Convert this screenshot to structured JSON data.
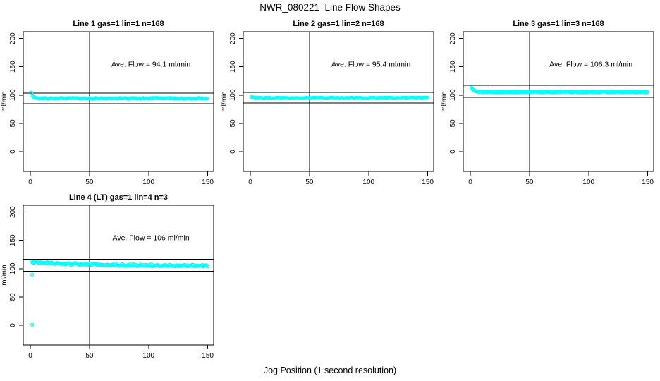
{
  "chart_data": {
    "type": "scatter",
    "title": "NWR_080221  Line Flow Shapes",
    "xlabel": "Jog Position (1 second resolution)",
    "ylabel": "ml/min",
    "point_color": "#00FFFF",
    "axis_color": "#000000",
    "background_color": "#FFFFFF",
    "x_ticks": [
      0,
      50,
      100,
      150
    ],
    "y_ticks": [
      0,
      50,
      100,
      150,
      200
    ],
    "xlim": [
      -6,
      155
    ],
    "ylim": [
      -35,
      212
    ],
    "grid": false,
    "legend": "none",
    "annotation_anchor": {
      "x": 102,
      "y": 150
    },
    "plots": [
      {
        "id": "line1",
        "title": "Line 1 gas=1 lin=1 n=168",
        "annotation": "Ave. Flow =  94.1  ml/min",
        "ave_flow": 94.1,
        "n": 168,
        "vline_x": 50,
        "ref_lines": [
          103.5,
          84.7
        ],
        "series": {
          "x_start": 1,
          "x_end": 150,
          "points": 168,
          "start_value": 104,
          "settle_value": 94.2,
          "decay_tau": 1.5,
          "noise": 0.8,
          "outliers": []
        }
      },
      {
        "id": "line2",
        "title": "Line 2 gas=1 lin=2 n=168",
        "annotation": "Ave. Flow =  95.4  ml/min",
        "ave_flow": 95.4,
        "n": 168,
        "vline_x": 50,
        "ref_lines": [
          104.9,
          85.9
        ],
        "series": {
          "x_start": 1,
          "x_end": 150,
          "points": 168,
          "start_value": 97,
          "settle_value": 94.9,
          "decay_tau": 1.5,
          "noise": 0.8,
          "outliers": []
        }
      },
      {
        "id": "line3",
        "title": "Line 3 gas=1 lin=3 n=168",
        "annotation": "Ave. Flow =  106.3  ml/min",
        "ave_flow": 106.3,
        "n": 168,
        "vline_x": 50,
        "ref_lines": [
          116.9,
          95.7
        ],
        "series": {
          "x_start": 1,
          "x_end": 150,
          "points": 168,
          "start_value": 113,
          "settle_value": 105.6,
          "decay_tau": 2,
          "noise": 0.8,
          "outliers": []
        }
      },
      {
        "id": "line4",
        "title": "Line 4 (LT) gas=1 lin=4 n=3",
        "annotation": "Ave. Flow =  106  ml/min",
        "ave_flow": 106,
        "n": 3,
        "vline_x": 50,
        "ref_lines": [
          116.6,
          95.4
        ],
        "series": {
          "x_start": 1,
          "x_end": 150,
          "points": 168,
          "start_value": 111.5,
          "settle_value": 104.8,
          "decay_tau": 55,
          "noise": 1.6,
          "outliers": [
            [
              1.5,
              89.5
            ],
            [
              1.5,
              0.8
            ]
          ]
        }
      }
    ]
  }
}
